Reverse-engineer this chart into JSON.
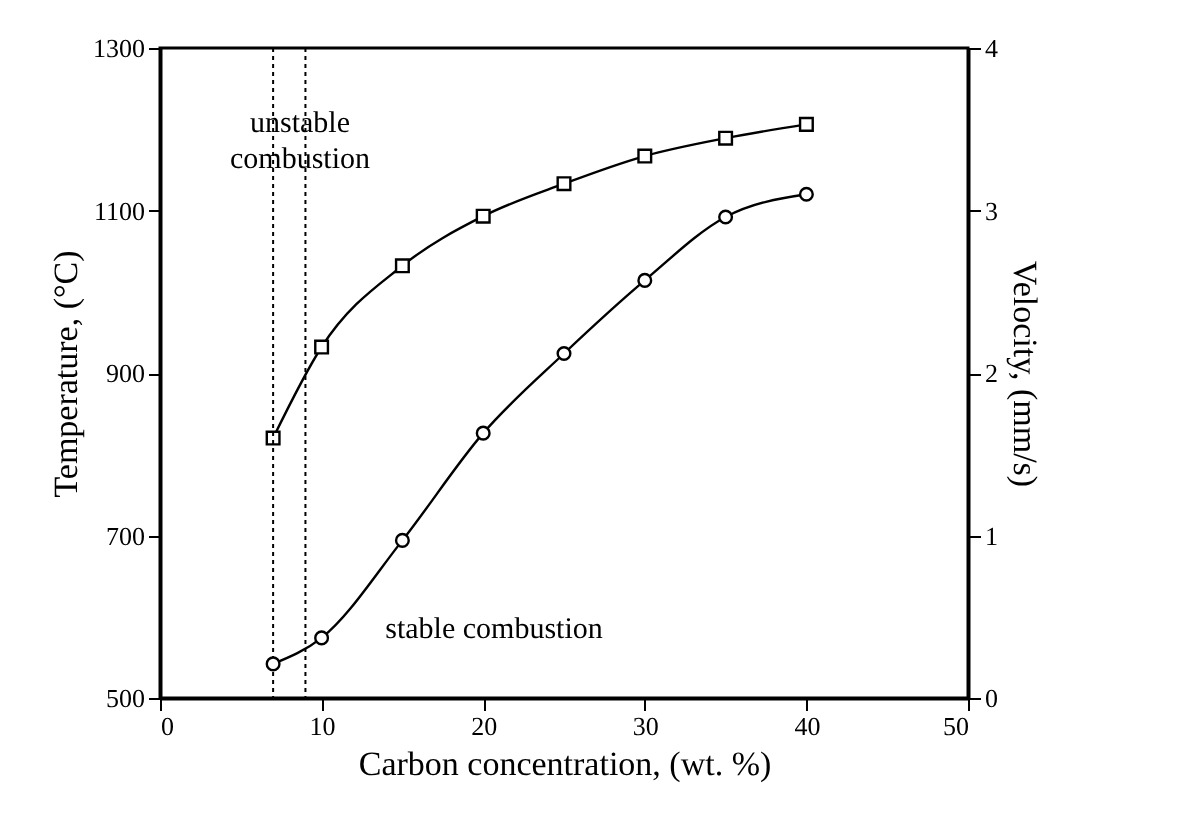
{
  "chart_data": {
    "type": "line",
    "xlabel": "Carbon concentration, (wt. %)",
    "ylabel": "Temperature, (°C)",
    "y2label": "Velocity, (mm/s)",
    "xlim": [
      0,
      50
    ],
    "xticks": [
      0,
      10,
      20,
      30,
      40,
      50
    ],
    "ylim": [
      500,
      1300
    ],
    "yticks": [
      500,
      700,
      900,
      1100,
      1300
    ],
    "y2lim": [
      0,
      4
    ],
    "y2ticks": [
      0,
      1,
      2,
      3,
      4
    ],
    "x": [
      7,
      10,
      15,
      20,
      25,
      30,
      35,
      40
    ],
    "series": [
      {
        "color": "#000000",
        "marker": "square",
        "values": [
          820,
          932,
          1032,
          1093,
          1133,
          1167,
          1189,
          1206
        ]
      },
      {
        "color": "#000000",
        "marker": "circle",
        "axis": "y2",
        "values": [
          0.21,
          0.37,
          0.97,
          1.63,
          2.12,
          2.57,
          2.96,
          3.1
        ]
      }
    ],
    "ref_lines": [
      {
        "axis": "x",
        "value": 7,
        "line_style": "dotted"
      },
      {
        "axis": "x",
        "value": 9,
        "line_style": "dotted"
      }
    ],
    "annotations": [
      "unstable combustion",
      "stable combustion"
    ]
  }
}
